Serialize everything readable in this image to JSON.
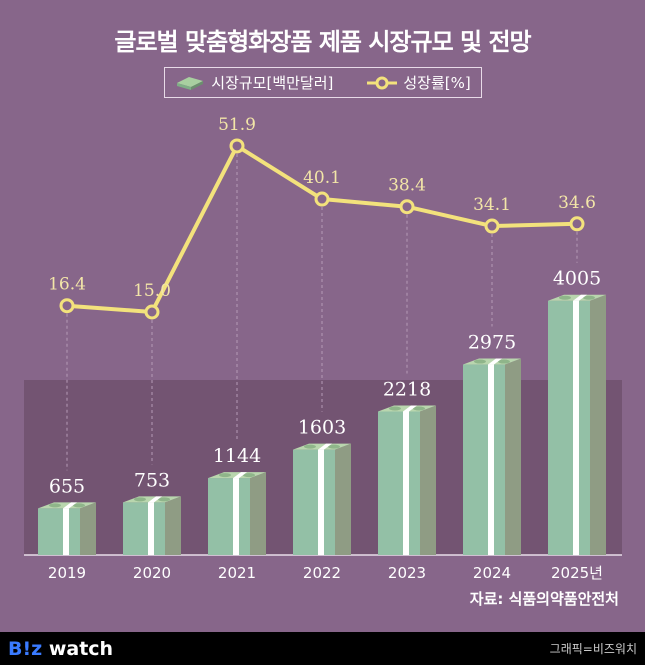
{
  "title": "글로벌 맞춤형화장품 제품 시장규모 및 전망",
  "legend": {
    "bar": "시장규모[백만달러]",
    "line": "성장률[%]",
    "bar_icon": "money-bundle-icon",
    "line_icon": "circle-marker-line-icon"
  },
  "source": "자료: 식품의약품안전처",
  "footer": {
    "logo_b": "B!z",
    "logo_rest": " watch",
    "credit": "그래픽=비즈워치"
  },
  "colors": {
    "background": "#87668a",
    "plot_band": "#735472",
    "bar_front": "#93c0a6",
    "bar_side": "#8f9c84",
    "line": "#f3e27c",
    "label": "#f3e6a8"
  },
  "chart_data": {
    "type": "bar+line",
    "title": "글로벌 맞춤형화장품 제품 시장규모 및 전망",
    "categories": [
      "2019",
      "2020",
      "2021",
      "2022",
      "2023",
      "2024",
      "2025년"
    ],
    "series": [
      {
        "name": "시장규모[백만달러]",
        "type": "bar",
        "values": [
          655,
          753,
          1144,
          1603,
          2218,
          2975,
          4005
        ]
      },
      {
        "name": "성장률[%]",
        "type": "line",
        "values": [
          16.4,
          15.0,
          51.9,
          40.1,
          38.4,
          34.1,
          34.6
        ]
      }
    ],
    "grid": false,
    "legend_position": "top-center"
  }
}
